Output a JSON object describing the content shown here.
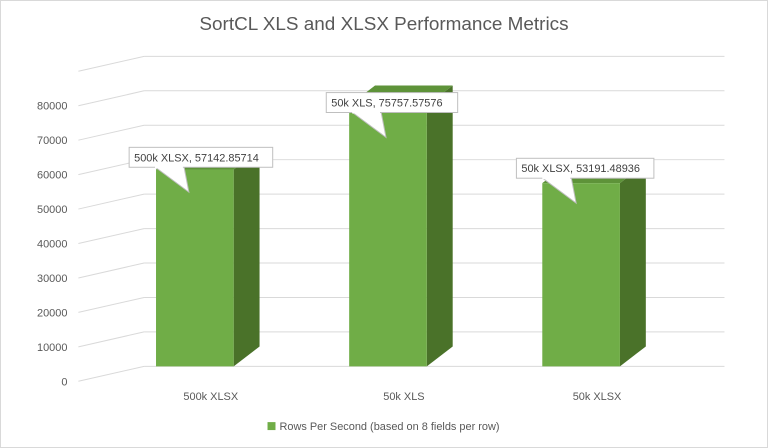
{
  "chart_data": {
    "type": "bar",
    "style": "3d-column",
    "title": "SortCL XLS and XLSX Performance Metrics",
    "categories": [
      "500k XLSX",
      "50k XLS",
      "50k XLSX"
    ],
    "series": [
      {
        "name": "Rows Per Second (based on 8 fields per row)",
        "values": [
          57142.85714,
          75757.57576,
          53191.48936
        ],
        "color": "#70ad47",
        "side_color": "#4a7229"
      }
    ],
    "data_labels": [
      "500k XLSX, 57142.85714",
      "50k XLS, 75757.57576",
      "50k XLSX, 53191.48936"
    ],
    "y_ticks": [
      "0",
      "10000",
      "20000",
      "30000",
      "40000",
      "50000",
      "60000",
      "70000",
      "80000"
    ],
    "ylim": [
      0,
      90000
    ],
    "grid": true,
    "legend_position": "bottom"
  }
}
